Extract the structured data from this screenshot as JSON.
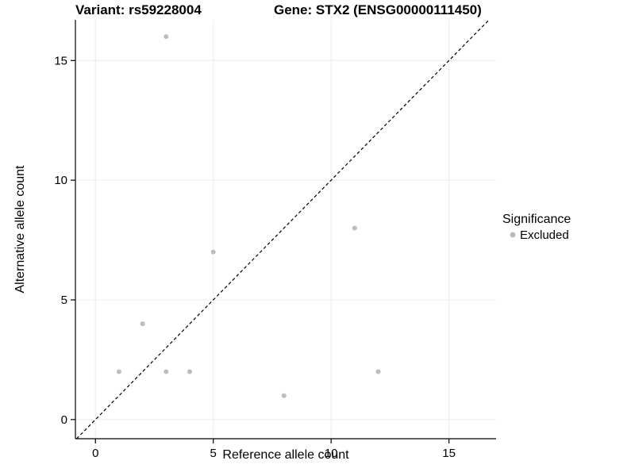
{
  "title": {
    "left": "Variant: rs59228004",
    "right": "Gene: STX2 (ENSG00000111450)"
  },
  "legend": {
    "title": "Significance",
    "items": [
      {
        "label": "Excluded",
        "color": "#bdbdbd"
      }
    ]
  },
  "colors": {
    "background": "#ffffff",
    "grid": "#ececec",
    "axis": "#000000",
    "point": "#bdbdbd",
    "reference_line": "#000000"
  },
  "chart_data": {
    "type": "scatter",
    "title": "Variant: rs59228004 — Gene: STX2 (ENSG00000111450)",
    "xlabel": "Reference allele count",
    "ylabel": "Alternative allele count",
    "xlim": [
      -0.85,
      17
    ],
    "ylim": [
      -0.8,
      16.7
    ],
    "xticks": [
      0,
      5,
      10,
      15
    ],
    "yticks": [
      0,
      5,
      10,
      15
    ],
    "grid": true,
    "legend_position": "right",
    "series": [
      {
        "name": "Excluded",
        "color": "#bdbdbd",
        "points": [
          [
            1,
            2
          ],
          [
            2,
            4
          ],
          [
            3,
            2
          ],
          [
            3,
            16
          ],
          [
            4,
            2
          ],
          [
            5,
            7
          ],
          [
            8,
            1
          ],
          [
            11,
            8
          ],
          [
            12,
            2
          ]
        ]
      }
    ],
    "reference_line": {
      "type": "identity",
      "dash": true,
      "color": "#000000"
    }
  }
}
